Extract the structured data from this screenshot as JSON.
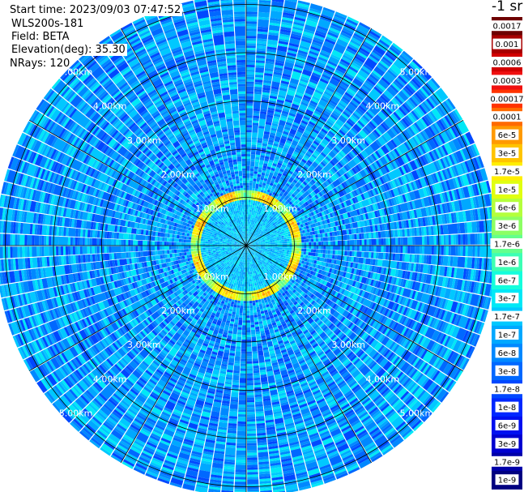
{
  "header": {
    "start_time": "Start time: 2023/09/03 07:47:52",
    "instrument": "WLS200s-181",
    "field": "Field: BETA",
    "elevation": "Elevation(deg): 35.30",
    "nrays": "NRays: 120"
  },
  "colorbar": {
    "unit": "-1 sr",
    "labels": [
      "0.0017",
      "0.001",
      "0.0006",
      "0.0003",
      "0.00017",
      "0.0001",
      "6e-5",
      "3e-5",
      "1.7e-5",
      "1e-5",
      "6e-6",
      "3e-6",
      "1.7e-6",
      "1e-6",
      "6e-7",
      "3e-7",
      "1.7e-7",
      "1e-7",
      "6e-8",
      "3e-8",
      "1.7e-8",
      "1e-8",
      "6e-9",
      "3e-9",
      "1.7e-9",
      "1e-9"
    ],
    "colors": [
      "#6e0000",
      "#a80000",
      "#d20000",
      "#f01010",
      "#ff3300",
      "#ff6a00",
      "#ff9a00",
      "#ffc400",
      "#ffee00",
      "#e0ff10",
      "#b4ff3c",
      "#8cff64",
      "#64ff8c",
      "#3cffb4",
      "#14fedc",
      "#00e8f6",
      "#00c8ff",
      "#00a8ff",
      "#0088ff",
      "#0068ff",
      "#0048ff",
      "#0028ff",
      "#0010f0",
      "#0000d0",
      "#0000a8",
      "#000080"
    ]
  },
  "chart_data": {
    "type": "heatmap",
    "projection": "polar-ppi",
    "field": "BETA",
    "units": "-1 sr",
    "elevation_deg": 35.3,
    "n_rays": 120,
    "range_rings_km": [
      1.0,
      2.0,
      3.0,
      4.0,
      5.0
    ],
    "range_ring_labels": [
      "1.00km",
      "2.00km",
      "3.00km",
      "4.00km",
      "5.00km"
    ],
    "max_range_km": 5.2,
    "value_scale": "log",
    "value_range": [
      1e-09,
      0.0017
    ],
    "typical_background_beta": 1e-07,
    "aerosol_ring_range_km": [
      0.95,
      1.15
    ],
    "aerosol_ring_peak_beta": 3e-05,
    "grid": true
  }
}
